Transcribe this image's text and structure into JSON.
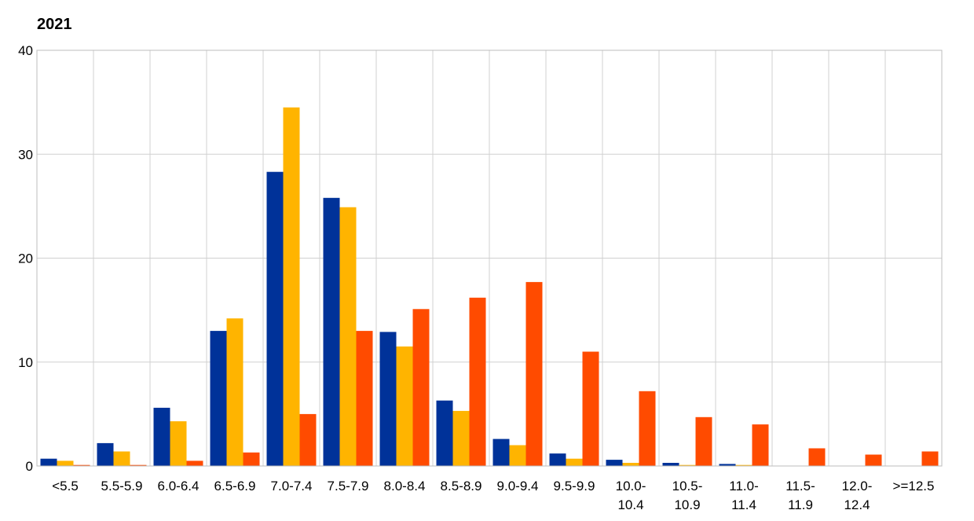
{
  "chart_data": {
    "type": "bar",
    "title": "2021",
    "xlabel": "",
    "ylabel": "",
    "ylim": [
      0,
      40
    ],
    "yticks": [
      0,
      10,
      20,
      30,
      40
    ],
    "grid": true,
    "legend": "none",
    "categories": [
      [
        "<5.5"
      ],
      [
        "5.5-5.9"
      ],
      [
        "6.0-6.4"
      ],
      [
        "6.5-6.9"
      ],
      [
        "7.0-7.4"
      ],
      [
        "7.5-7.9"
      ],
      [
        "8.0-8.4"
      ],
      [
        "8.5-8.9"
      ],
      [
        "9.0-9.4"
      ],
      [
        "9.5-9.9"
      ],
      [
        "10.0-",
        "10.4"
      ],
      [
        "10.5-",
        "10.9"
      ],
      [
        "11.0-",
        "11.4"
      ],
      [
        "11.5-",
        "11.9"
      ],
      [
        "12.0-",
        "12.4"
      ],
      [
        ">=12.5"
      ]
    ],
    "series": [
      {
        "color": "#003299",
        "values": [
          0.7,
          2.2,
          5.6,
          13.0,
          28.3,
          25.8,
          12.9,
          6.3,
          2.6,
          1.2,
          0.6,
          0.3,
          0.2,
          0.0,
          0.0,
          0.0
        ]
      },
      {
        "color": "#FFB400",
        "values": [
          0.5,
          1.4,
          4.3,
          14.2,
          34.5,
          24.9,
          11.5,
          5.3,
          2.0,
          0.7,
          0.3,
          0.1,
          0.1,
          0.0,
          0.0,
          0.0
        ]
      },
      {
        "color": "#FF4B00",
        "values": [
          0.1,
          0.1,
          0.5,
          1.3,
          5.0,
          13.0,
          15.1,
          16.2,
          17.7,
          11.0,
          7.2,
          4.7,
          4.0,
          1.7,
          1.1,
          1.4
        ]
      }
    ]
  }
}
